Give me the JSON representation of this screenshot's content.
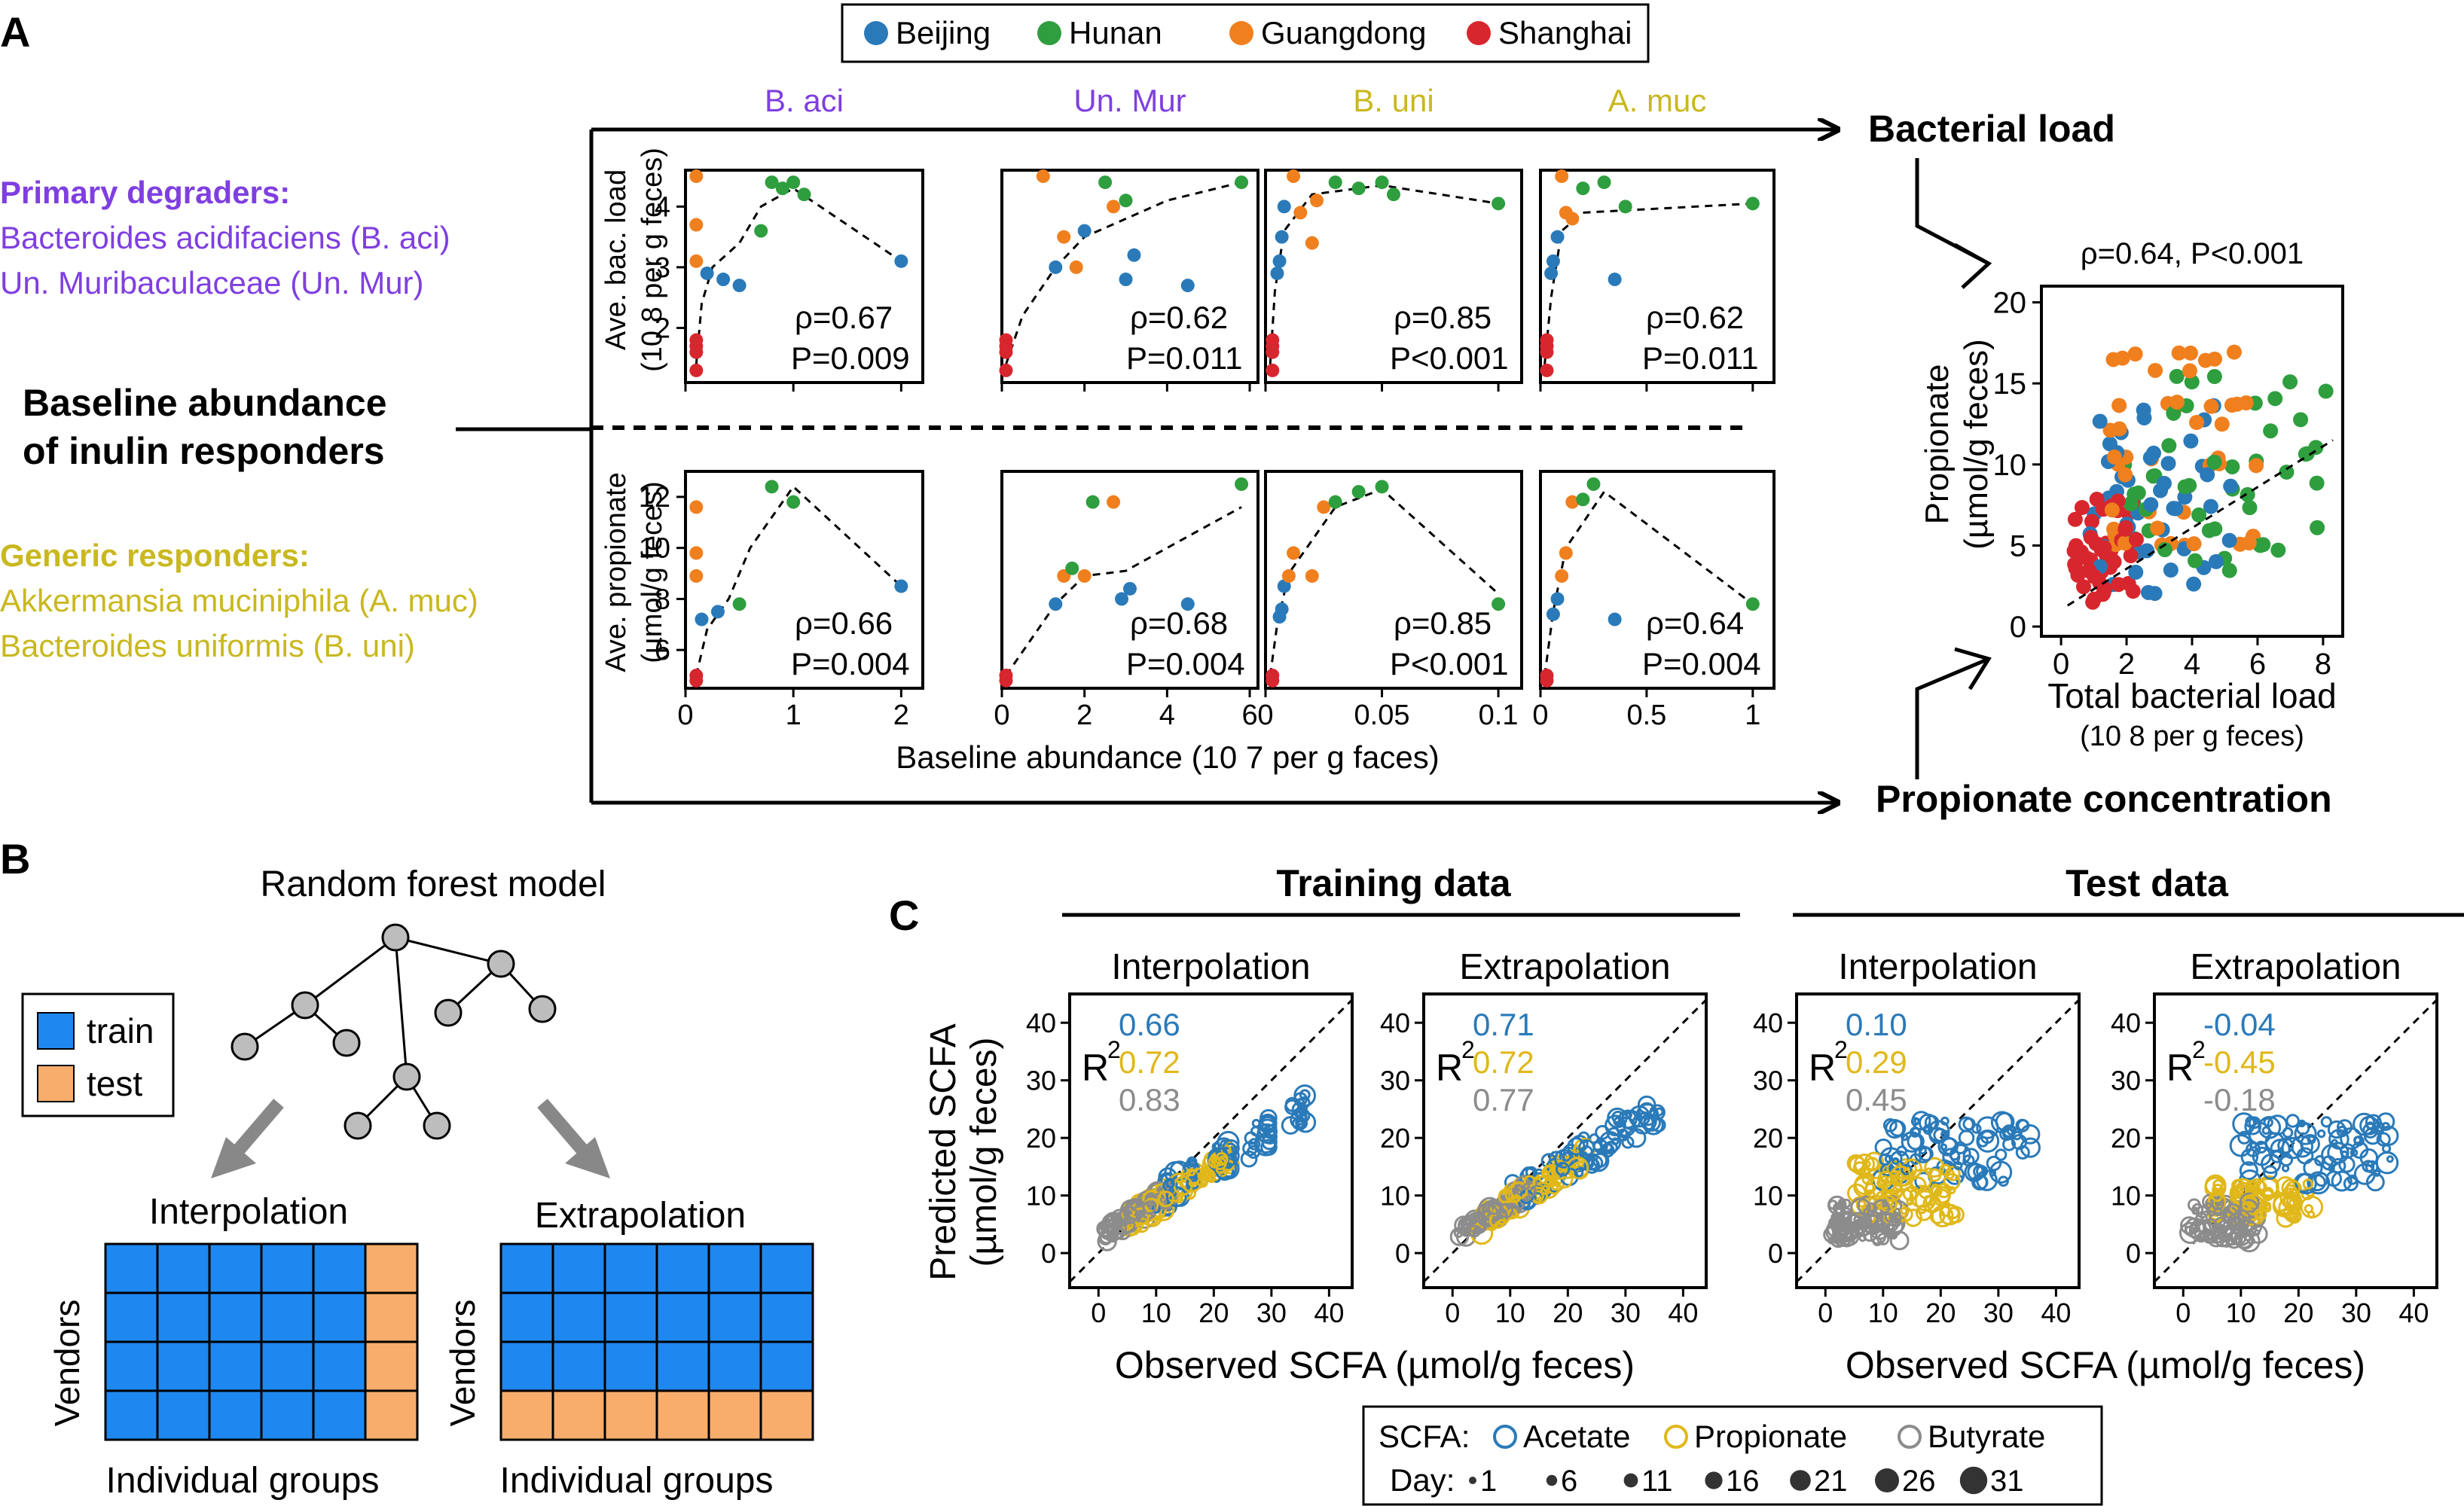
{
  "colors": {
    "beijing": "#2a7ab9",
    "hunan": "#2e9e3e",
    "guangdong": "#f07f1e",
    "shanghai": "#d8262e",
    "primary": "#7f3fe0",
    "generic": "#c9b81f",
    "acetate": "#2a7ab9",
    "propionate": "#e0b81a",
    "butyrate": "#8c8c8c",
    "train": "#1e88f0",
    "test": "#f8ad6c"
  },
  "panelA": {
    "label": "A",
    "legend": [
      "Beijing",
      "Hunan",
      "Guangdong",
      "Shanghai"
    ],
    "primary_title": "Primary degraders:",
    "primary_lines": [
      "Bacteroides acidifaciens (B. aci)",
      "Un. Muribaculaceae (Un. Mur)"
    ],
    "generic_title": "Generic responders:",
    "generic_lines": [
      "Akkermansia muciniphila (A. muc)",
      "Bacteroides uniformis (B. uni)"
    ],
    "baseline_lines": [
      "Baseline abundance",
      "of inulin responders"
    ],
    "col_titles": [
      "B. aci",
      "Un. Mur",
      "B. uni",
      "A. muc"
    ],
    "ylabel_top": [
      "Ave. bac. load",
      "(10 8 per g feces)"
    ],
    "ylabel_bottom": [
      "Ave. propionate",
      "(µmol/g feces)"
    ],
    "xlabel": "Baseline abundance (10 7 per g faces)",
    "arrow_top": "Bacterial load",
    "arrow_bottom": "Propionate concentration",
    "top_stats": [
      [
        "ρ=0.67",
        "P=0.009"
      ],
      [
        "ρ=0.62",
        "P=0.011"
      ],
      [
        "ρ=0.85",
        "P<0.001"
      ],
      [
        "ρ=0.62",
        "P=0.011"
      ]
    ],
    "bottom_stats": [
      [
        "ρ=0.66",
        "P=0.004"
      ],
      [
        "ρ=0.68",
        "P=0.004"
      ],
      [
        "ρ=0.85",
        "P<0.001"
      ],
      [
        "ρ=0.64",
        "P=0.004"
      ]
    ],
    "top_yticks": [
      "2",
      "3",
      "4"
    ],
    "bottom_yticks": [
      "6",
      "8",
      "10",
      "12"
    ],
    "xticks": [
      [
        "0",
        "1",
        "2"
      ],
      [
        "0",
        "2",
        "4",
        "6"
      ],
      [
        "0",
        "0.05",
        "0.1"
      ],
      [
        "0",
        "0.5",
        "1"
      ]
    ],
    "right_title": "ρ=0.64, P<0.001",
    "right_ylabel": [
      "Propionate",
      "(µmol/g feces)"
    ],
    "right_xlabel": "Total bacterial load",
    "right_xlabel_sub": "(10 8 per g feces)",
    "right_yticks": [
      "0",
      "5",
      "10",
      "15",
      "20"
    ],
    "right_xticks": [
      "0",
      "2",
      "4",
      "6",
      "8"
    ]
  },
  "panelB": {
    "label": "B",
    "title": "Random forest model",
    "legend": [
      "train",
      "test"
    ],
    "interp": "Interpolation",
    "extrap": "Extrapolation",
    "vendors": "Vendors",
    "groups": "Individual groups"
  },
  "panelC": {
    "label": "C",
    "training": "Training data",
    "test": "Test data",
    "titles": [
      "Interpolation",
      "Extrapolation",
      "Interpolation",
      "Extrapolation"
    ],
    "r2": "R",
    "r2_sup": "2",
    "values": [
      [
        "0.66",
        "0.72",
        "0.83"
      ],
      [
        "0.71",
        "0.72",
        "0.77"
      ],
      [
        "0.10",
        "0.29",
        "0.45"
      ],
      [
        "-0.04",
        "-0.45",
        "-0.18"
      ]
    ],
    "ylabel": [
      "Predicted SCFA",
      "(µmol/g feces)"
    ],
    "xlabel": "Observed SCFA (µmol/g feces)",
    "ticks": [
      "0",
      "10",
      "20",
      "30",
      "40"
    ],
    "legend_scfa": "SCFA:",
    "legend_items": [
      "Acetate",
      "Propionate",
      "Butyrate"
    ],
    "legend_day": "Day:",
    "days": [
      "1",
      "6",
      "11",
      "16",
      "21",
      "26",
      "31"
    ]
  },
  "chart_data": [
    {
      "type": "scatter",
      "title": "B. aci",
      "ylabel": "Ave. bac. load",
      "stat": "ρ=0.67, P=0.009",
      "xlim": [
        0,
        2.2
      ],
      "ylim": [
        1.1,
        4.6
      ],
      "points": [
        [
          0.1,
          4.5,
          "Guangdong"
        ],
        [
          0.1,
          3.7,
          "Guangdong"
        ],
        [
          0.1,
          3.1,
          "Guangdong"
        ],
        [
          0.1,
          1.8,
          "Shanghai"
        ],
        [
          0.1,
          1.7,
          "Shanghai"
        ],
        [
          0.1,
          1.6,
          "Shanghai"
        ],
        [
          0.1,
          1.3,
          "Shanghai"
        ],
        [
          0.2,
          2.9,
          "Beijing"
        ],
        [
          0.35,
          2.8,
          "Beijing"
        ],
        [
          0.5,
          2.7,
          "Beijing"
        ],
        [
          0.7,
          3.6,
          "Hunan"
        ],
        [
          0.8,
          4.4,
          "Hunan"
        ],
        [
          0.9,
          4.3,
          "Hunan"
        ],
        [
          1.0,
          4.4,
          "Hunan"
        ],
        [
          1.1,
          4.2,
          "Hunan"
        ],
        [
          2.0,
          3.1,
          "Beijing"
        ]
      ],
      "trend": [
        [
          0.1,
          1.4
        ],
        [
          0.15,
          2.4
        ],
        [
          0.25,
          3.0
        ],
        [
          0.5,
          3.4
        ],
        [
          0.7,
          4.0
        ],
        [
          1.0,
          4.3
        ],
        [
          2.0,
          3.1
        ]
      ]
    },
    {
      "type": "scatter",
      "title": "Un. Mur",
      "ylabel": "Ave. bac. load",
      "stat": "ρ=0.62, P=0.011",
      "xlim": [
        0,
        6.2
      ],
      "ylim": [
        1.1,
        4.6
      ],
      "points": [
        [
          0.1,
          1.8,
          "Shanghai"
        ],
        [
          0.1,
          1.7,
          "Shanghai"
        ],
        [
          0.1,
          1.6,
          "Shanghai"
        ],
        [
          0.1,
          1.3,
          "Shanghai"
        ],
        [
          1.0,
          4.5,
          "Guangdong"
        ],
        [
          1.3,
          3.0,
          "Beijing"
        ],
        [
          1.5,
          3.5,
          "Guangdong"
        ],
        [
          1.8,
          3.0,
          "Guangdong"
        ],
        [
          2.0,
          3.6,
          "Beijing"
        ],
        [
          2.5,
          4.4,
          "Hunan"
        ],
        [
          2.7,
          4.0,
          "Guangdong"
        ],
        [
          3.0,
          2.8,
          "Beijing"
        ],
        [
          3.2,
          3.2,
          "Beijing"
        ],
        [
          3.0,
          4.1,
          "Hunan"
        ],
        [
          4.5,
          2.7,
          "Beijing"
        ],
        [
          5.8,
          4.4,
          "Hunan"
        ]
      ],
      "trend": [
        [
          0.1,
          1.4
        ],
        [
          0.5,
          2.2
        ],
        [
          1.3,
          3.0
        ],
        [
          2.0,
          3.5
        ],
        [
          3.0,
          3.8
        ],
        [
          4.0,
          4.1
        ],
        [
          5.8,
          4.4
        ]
      ]
    },
    {
      "type": "scatter",
      "title": "B. uni",
      "ylabel": "Ave. bac. load",
      "stat": "ρ=0.85, P<0.001",
      "xlim": [
        0,
        0.11
      ],
      "ylim": [
        1.1,
        4.6
      ],
      "points": [
        [
          0.003,
          1.8,
          "Shanghai"
        ],
        [
          0.003,
          1.7,
          "Shanghai"
        ],
        [
          0.003,
          1.6,
          "Shanghai"
        ],
        [
          0.003,
          1.3,
          "Shanghai"
        ],
        [
          0.005,
          2.9,
          "Beijing"
        ],
        [
          0.006,
          3.1,
          "Beijing"
        ],
        [
          0.007,
          3.5,
          "Beijing"
        ],
        [
          0.008,
          4.0,
          "Beijing"
        ],
        [
          0.012,
          4.5,
          "Guangdong"
        ],
        [
          0.015,
          3.9,
          "Guangdong"
        ],
        [
          0.02,
          3.4,
          "Guangdong"
        ],
        [
          0.022,
          4.1,
          "Guangdong"
        ],
        [
          0.03,
          4.4,
          "Hunan"
        ],
        [
          0.04,
          4.3,
          "Hunan"
        ],
        [
          0.05,
          4.4,
          "Hunan"
        ],
        [
          0.055,
          4.2,
          "Hunan"
        ],
        [
          0.1,
          4.05,
          "Hunan"
        ]
      ],
      "trend": [
        [
          0.002,
          1.4
        ],
        [
          0.004,
          2.6
        ],
        [
          0.008,
          3.6
        ],
        [
          0.02,
          4.2
        ],
        [
          0.05,
          4.35
        ],
        [
          0.1,
          4.05
        ]
      ]
    },
    {
      "type": "scatter",
      "title": "A. muc",
      "ylabel": "Ave. bac. load",
      "stat": "ρ=0.62, P=0.011",
      "xlim": [
        0,
        1.1
      ],
      "ylim": [
        1.1,
        4.6
      ],
      "points": [
        [
          0.03,
          1.8,
          "Shanghai"
        ],
        [
          0.03,
          1.7,
          "Shanghai"
        ],
        [
          0.03,
          1.6,
          "Shanghai"
        ],
        [
          0.03,
          1.3,
          "Shanghai"
        ],
        [
          0.05,
          2.9,
          "Beijing"
        ],
        [
          0.06,
          3.1,
          "Beijing"
        ],
        [
          0.08,
          3.5,
          "Beijing"
        ],
        [
          0.1,
          4.5,
          "Guangdong"
        ],
        [
          0.12,
          3.9,
          "Guangdong"
        ],
        [
          0.15,
          3.8,
          "Guangdong"
        ],
        [
          0.2,
          4.3,
          "Hunan"
        ],
        [
          0.3,
          4.4,
          "Hunan"
        ],
        [
          0.35,
          2.8,
          "Beijing"
        ],
        [
          0.4,
          4.0,
          "Hunan"
        ],
        [
          1.0,
          4.05,
          "Hunan"
        ]
      ],
      "trend": [
        [
          0.02,
          1.4
        ],
        [
          0.05,
          2.5
        ],
        [
          0.1,
          3.6
        ],
        [
          0.2,
          3.9
        ],
        [
          1.0,
          4.05
        ]
      ]
    },
    {
      "type": "scatter",
      "title": "B. aci",
      "ylabel": "Ave. propionate",
      "stat": "ρ=0.66, P=0.004",
      "xlim": [
        0,
        2.2
      ],
      "ylim": [
        4.5,
        13
      ],
      "points": [
        [
          0.1,
          11.6,
          "Guangdong"
        ],
        [
          0.1,
          9.8,
          "Guangdong"
        ],
        [
          0.1,
          8.9,
          "Guangdong"
        ],
        [
          0.1,
          5.0,
          "Shanghai"
        ],
        [
          0.1,
          4.8,
          "Shanghai"
        ],
        [
          0.15,
          7.2,
          "Beijing"
        ],
        [
          0.3,
          7.5,
          "Beijing"
        ],
        [
          0.5,
          7.8,
          "Hunan"
        ],
        [
          0.8,
          12.4,
          "Hunan"
        ],
        [
          1.0,
          11.8,
          "Hunan"
        ],
        [
          2.0,
          8.5,
          "Beijing"
        ]
      ],
      "trend": [
        [
          0.1,
          5.0
        ],
        [
          0.2,
          6.8
        ],
        [
          0.4,
          8.0
        ],
        [
          0.6,
          10.0
        ],
        [
          1.0,
          12.4
        ],
        [
          2.0,
          8.5
        ]
      ]
    },
    {
      "type": "scatter",
      "title": "Un. Mur",
      "ylabel": "Ave. propionate",
      "stat": "ρ=0.68, P=0.004",
      "xlim": [
        0,
        6.2
      ],
      "ylim": [
        4.5,
        13
      ],
      "points": [
        [
          0.1,
          5.0,
          "Shanghai"
        ],
        [
          0.1,
          4.8,
          "Shanghai"
        ],
        [
          1.3,
          7.8,
          "Beijing"
        ],
        [
          1.5,
          8.9,
          "Guangdong"
        ],
        [
          1.7,
          9.2,
          "Hunan"
        ],
        [
          2.0,
          8.9,
          "Guangdong"
        ],
        [
          2.2,
          11.8,
          "Hunan"
        ],
        [
          2.7,
          11.8,
          "Guangdong"
        ],
        [
          2.9,
          8.0,
          "Beijing"
        ],
        [
          3.1,
          8.4,
          "Beijing"
        ],
        [
          4.5,
          7.8,
          "Beijing"
        ],
        [
          5.8,
          12.5,
          "Hunan"
        ]
      ],
      "trend": [
        [
          0.1,
          5.0
        ],
        [
          1.3,
          7.8
        ],
        [
          2.0,
          8.9
        ],
        [
          3.0,
          9.1
        ],
        [
          4.0,
          10.0
        ],
        [
          5.8,
          11.6
        ]
      ]
    },
    {
      "type": "scatter",
      "title": "B. uni",
      "ylabel": "Ave. propionate",
      "stat": "ρ=0.85, P<0.001",
      "xlim": [
        0,
        0.11
      ],
      "ylim": [
        4.5,
        13
      ],
      "points": [
        [
          0.003,
          5.0,
          "Shanghai"
        ],
        [
          0.003,
          4.8,
          "Shanghai"
        ],
        [
          0.006,
          7.3,
          "Beijing"
        ],
        [
          0.007,
          7.6,
          "Beijing"
        ],
        [
          0.008,
          8.5,
          "Beijing"
        ],
        [
          0.01,
          8.9,
          "Guangdong"
        ],
        [
          0.012,
          9.8,
          "Guangdong"
        ],
        [
          0.02,
          8.9,
          "Guangdong"
        ],
        [
          0.025,
          11.6,
          "Guangdong"
        ],
        [
          0.03,
          11.8,
          "Hunan"
        ],
        [
          0.04,
          12.2,
          "Hunan"
        ],
        [
          0.05,
          12.4,
          "Hunan"
        ],
        [
          0.1,
          7.8,
          "Hunan"
        ]
      ],
      "trend": [
        [
          0.002,
          5.0
        ],
        [
          0.005,
          7.0
        ],
        [
          0.01,
          9.0
        ],
        [
          0.03,
          11.6
        ],
        [
          0.05,
          12.3
        ],
        [
          0.1,
          8.2
        ]
      ]
    },
    {
      "type": "scatter",
      "title": "A. muc",
      "ylabel": "Ave. propionate",
      "stat": "ρ=0.64, P=0.004",
      "xlim": [
        0,
        1.1
      ],
      "ylim": [
        4.5,
        13
      ],
      "points": [
        [
          0.03,
          5.0,
          "Shanghai"
        ],
        [
          0.03,
          4.8,
          "Shanghai"
        ],
        [
          0.06,
          7.4,
          "Beijing"
        ],
        [
          0.08,
          8.0,
          "Beijing"
        ],
        [
          0.1,
          8.9,
          "Guangdong"
        ],
        [
          0.12,
          9.8,
          "Guangdong"
        ],
        [
          0.15,
          11.8,
          "Guangdong"
        ],
        [
          0.2,
          11.9,
          "Hunan"
        ],
        [
          0.25,
          12.5,
          "Hunan"
        ],
        [
          0.35,
          7.2,
          "Beijing"
        ],
        [
          1.0,
          7.8,
          "Hunan"
        ]
      ],
      "trend": [
        [
          0.02,
          5.0
        ],
        [
          0.06,
          7.5
        ],
        [
          0.12,
          10.0
        ],
        [
          0.3,
          12.2
        ],
        [
          1.0,
          7.8
        ]
      ]
    },
    {
      "type": "scatter",
      "title": "ρ=0.64, P<0.001",
      "xlabel": "Total bacterial load",
      "ylabel": "Propionate",
      "xlim": [
        -0.6,
        8.6
      ],
      "ylim": [
        -0.6,
        21
      ],
      "trend": [
        [
          0.2,
          1.3
        ],
        [
          8.3,
          11.5
        ]
      ]
    },
    {
      "type": "scatter",
      "title": "Training data / Interpolation",
      "xlabel": "Observed SCFA",
      "ylabel": "Predicted SCFA",
      "xlim": [
        -5,
        44
      ],
      "ylim": [
        -6,
        45
      ],
      "series": [
        {
          "name": "Acetate",
          "center": [
            22,
            18
          ]
        },
        {
          "name": "Propionate",
          "center": [
            12,
            10
          ]
        },
        {
          "name": "Butyrate",
          "center": [
            6,
            6
          ]
        }
      ],
      "R2": [
        0.66,
        0.72,
        0.83
      ]
    },
    {
      "type": "scatter",
      "title": "Training data / Extrapolation",
      "xlabel": "Observed SCFA",
      "ylabel": "Predicted SCFA",
      "xlim": [
        -5,
        44
      ],
      "ylim": [
        -6,
        45
      ],
      "R2": [
        0.71,
        0.72,
        0.77
      ]
    },
    {
      "type": "scatter",
      "title": "Test data / Interpolation",
      "xlabel": "Observed SCFA",
      "ylabel": "Predicted SCFA",
      "xlim": [
        -5,
        44
      ],
      "ylim": [
        -6,
        45
      ],
      "R2": [
        0.1,
        0.29,
        0.45
      ]
    },
    {
      "type": "scatter",
      "title": "Test data / Extrapolation",
      "xlabel": "Observed SCFA",
      "ylabel": "Predicted SCFA",
      "xlim": [
        -5,
        44
      ],
      "ylim": [
        -6,
        45
      ],
      "R2": [
        -0.04,
        -0.45,
        -0.18
      ]
    }
  ]
}
